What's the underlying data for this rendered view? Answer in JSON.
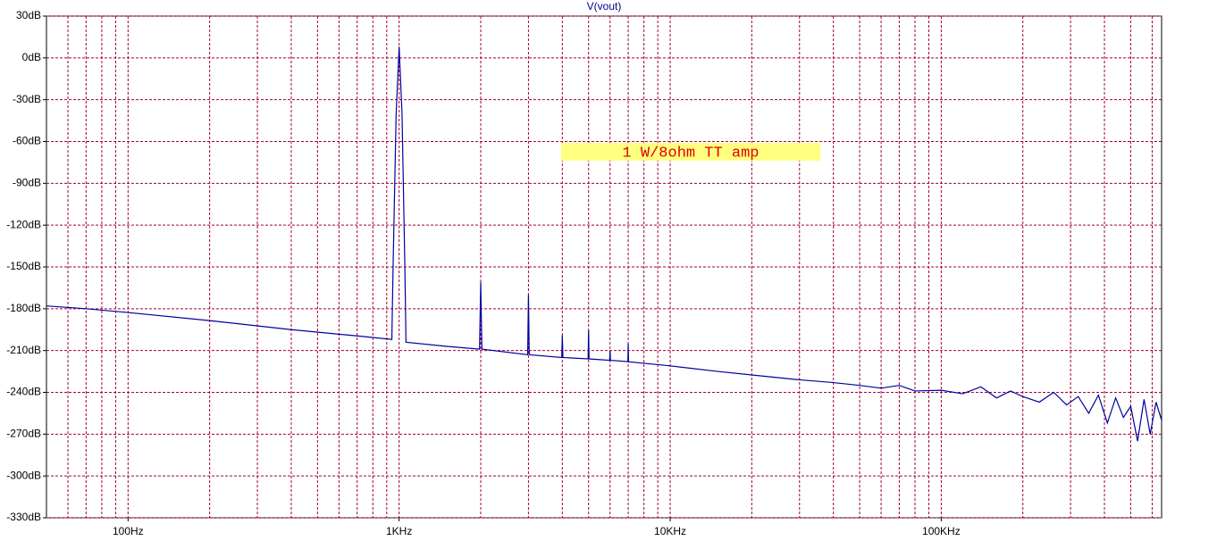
{
  "chart_data": {
    "type": "line",
    "annotation": "1 W/8ohm TT amp",
    "xscale": "log",
    "grid": true,
    "xlim": [
      50,
      650000
    ],
    "ylim": [
      -330,
      30
    ],
    "xticks": [
      {
        "value": 100,
        "label": "100Hz"
      },
      {
        "value": 1000,
        "label": "1KHz"
      },
      {
        "value": 10000,
        "label": "10KHz"
      },
      {
        "value": 100000,
        "label": "100KHz"
      }
    ],
    "xminorticks": [
      60,
      70,
      80,
      90,
      200,
      300,
      400,
      500,
      600,
      700,
      800,
      900,
      2000,
      3000,
      4000,
      5000,
      6000,
      7000,
      8000,
      9000,
      20000,
      30000,
      40000,
      50000,
      60000,
      70000,
      80000,
      90000,
      200000,
      300000,
      400000,
      500000,
      600000
    ],
    "yticks": [
      {
        "value": 30,
        "label": "30dB"
      },
      {
        "value": 0,
        "label": "0dB"
      },
      {
        "value": -30,
        "label": "-30dB"
      },
      {
        "value": -60,
        "label": "-60dB"
      },
      {
        "value": -90,
        "label": "-90dB"
      },
      {
        "value": -120,
        "label": "-120dB"
      },
      {
        "value": -150,
        "label": "-150dB"
      },
      {
        "value": -180,
        "label": "-180dB"
      },
      {
        "value": -210,
        "label": "-210dB"
      },
      {
        "value": -240,
        "label": "-240dB"
      },
      {
        "value": -270,
        "label": "-270dB"
      },
      {
        "value": -300,
        "label": "-300dB"
      },
      {
        "value": -330,
        "label": "-330dB"
      }
    ],
    "x": [
      50,
      70,
      100,
      200,
      400,
      700,
      940,
      950,
      975,
      1000,
      1025,
      1050,
      1060,
      1500,
      1980,
      2000,
      2020,
      2980,
      3000,
      3020,
      3980,
      4000,
      4020,
      4980,
      5000,
      5020,
      5980,
      6000,
      6020,
      6980,
      7000,
      7020,
      10000,
      15000,
      20000,
      30000,
      40000,
      50000,
      60000,
      70000,
      80000,
      100000,
      120000,
      140000,
      160000,
      180000,
      200000,
      230000,
      260000,
      290000,
      320000,
      350000,
      380000,
      410000,
      440000,
      470000,
      500000,
      530000,
      560000,
      590000,
      620000,
      650000
    ],
    "series": [
      {
        "name": "V(vout)",
        "color": "#0000a0",
        "values": [
          -178,
          -180,
          -182.7,
          -188.5,
          -195,
          -199.5,
          -202,
          -150,
          -40,
          8,
          -40,
          -150,
          -204,
          -207,
          -209,
          -161,
          -209,
          -213,
          -170,
          -213,
          -215,
          -199,
          -215,
          -216,
          -195.5,
          -216,
          -217,
          -210,
          -217,
          -218,
          -205,
          -218,
          -221,
          -225,
          -227.5,
          -231,
          -233,
          -235,
          -237,
          -235,
          -239,
          -238.5,
          -241,
          -236,
          -244,
          -239,
          -243,
          -247,
          -240,
          -249,
          -243,
          -255,
          -242,
          -262,
          -244,
          -258,
          -250,
          -275,
          -245,
          -270,
          -247,
          -260
        ]
      }
    ]
  }
}
